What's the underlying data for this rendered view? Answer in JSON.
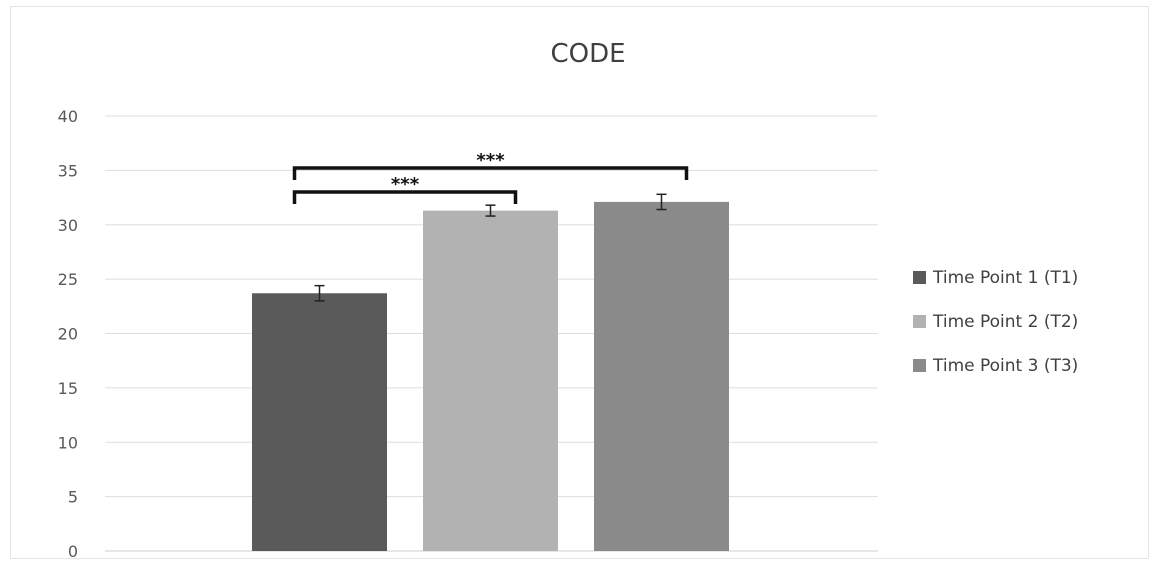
{
  "chart_data": {
    "type": "bar",
    "title": "CODE",
    "xlabel": "",
    "ylabel": "",
    "ylim": [
      0,
      40
    ],
    "yticks": [
      0,
      5,
      10,
      15,
      20,
      25,
      30,
      35,
      40
    ],
    "grid": true,
    "legend_position": "right",
    "series": [
      {
        "name": "Time Point 1 (T1)",
        "value": 23.7,
        "error": 0.7,
        "color": "#5a5a5a"
      },
      {
        "name": "Time Point 2 (T2)",
        "value": 31.3,
        "error": 0.5,
        "color": "#b2b2b2"
      },
      {
        "name": "Time Point 3 (T3)",
        "value": 32.1,
        "error": 0.7,
        "color": "#8a8a8a"
      }
    ],
    "significance": [
      {
        "from": 0,
        "to": 1,
        "label": "***"
      },
      {
        "from": 0,
        "to": 2,
        "label": "***"
      }
    ]
  }
}
